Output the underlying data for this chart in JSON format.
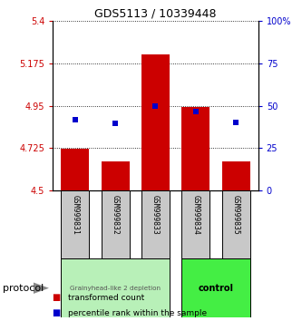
{
  "title": "GDS5113 / 10339448",
  "samples": [
    "GSM999831",
    "GSM999832",
    "GSM999833",
    "GSM999834",
    "GSM999835"
  ],
  "bar_base": 4.5,
  "bar_tops": [
    4.72,
    4.655,
    5.222,
    4.942,
    4.655
  ],
  "blue_values_left": [
    4.875,
    4.858,
    4.948,
    4.917,
    4.862
  ],
  "ylim_left": [
    4.5,
    5.4
  ],
  "ylim_right": [
    0,
    100
  ],
  "yticks_left": [
    4.5,
    4.725,
    4.95,
    5.175,
    5.4
  ],
  "ytick_labels_left": [
    "4.5",
    "4.725",
    "4.95",
    "5.175",
    "5.4"
  ],
  "yticks_right": [
    0,
    25,
    50,
    75,
    100
  ],
  "ytick_labels_right": [
    "0",
    "25",
    "50",
    "75",
    "100%"
  ],
  "bar_color": "#cc0000",
  "blue_color": "#0000cc",
  "group1_indices": [
    0,
    1,
    2
  ],
  "group2_indices": [
    3,
    4
  ],
  "group1_label": "Grainyhead-like 2 depletion",
  "group2_label": "control",
  "group1_color": "#b8f0b8",
  "group2_color": "#44ee44",
  "protocol_label": "protocol",
  "legend_bar_label": "transformed count",
  "legend_blue_label": "percentile rank within the sample",
  "bar_width": 0.7,
  "background_color": "#ffffff"
}
